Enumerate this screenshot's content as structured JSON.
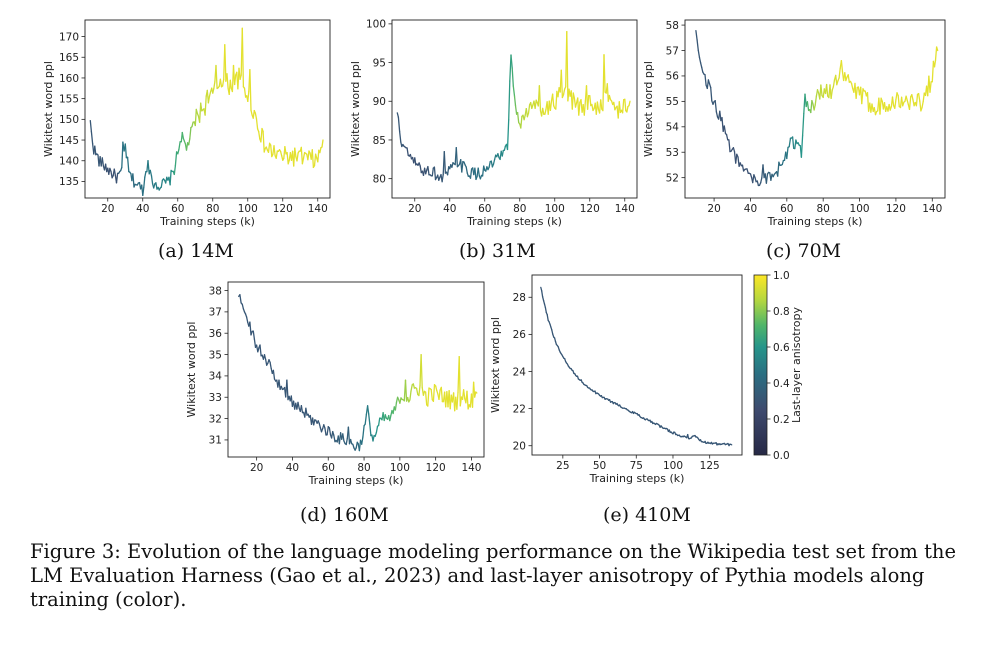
{
  "chart_data": [
    {
      "type": "line",
      "id": "a",
      "xlabel": "Training steps (k)",
      "ylabel": "Wikitext word ppl",
      "xlim": [
        7,
        147
      ],
      "ylim": [
        131,
        174
      ],
      "xticks": [
        20,
        40,
        60,
        80,
        100,
        120,
        140
      ],
      "yticks": [
        135,
        140,
        145,
        150,
        155,
        160,
        165,
        170
      ],
      "caption": "(a) 14M",
      "keypoints": [
        {
          "x": 10,
          "y": 149,
          "c": 0.35
        },
        {
          "x": 12,
          "y": 143,
          "c": 0.35
        },
        {
          "x": 15,
          "y": 140,
          "c": 0.35
        },
        {
          "x": 20,
          "y": 138,
          "c": 0.33
        },
        {
          "x": 25,
          "y": 136,
          "c": 0.33
        },
        {
          "x": 28,
          "y": 137,
          "c": 0.45
        },
        {
          "x": 30,
          "y": 144,
          "c": 0.48
        },
        {
          "x": 32,
          "y": 137,
          "c": 0.45
        },
        {
          "x": 35,
          "y": 135,
          "c": 0.42
        },
        {
          "x": 40,
          "y": 133,
          "c": 0.45
        },
        {
          "x": 43,
          "y": 140,
          "c": 0.5
        },
        {
          "x": 45,
          "y": 135,
          "c": 0.48
        },
        {
          "x": 50,
          "y": 134,
          "c": 0.52
        },
        {
          "x": 55,
          "y": 135,
          "c": 0.55
        },
        {
          "x": 58,
          "y": 138,
          "c": 0.65
        },
        {
          "x": 62,
          "y": 146,
          "c": 0.7
        },
        {
          "x": 65,
          "y": 143,
          "c": 0.75
        },
        {
          "x": 70,
          "y": 150,
          "c": 0.85
        },
        {
          "x": 75,
          "y": 153,
          "c": 0.9
        },
        {
          "x": 80,
          "y": 156,
          "c": 0.92
        },
        {
          "x": 85,
          "y": 160,
          "c": 0.95
        },
        {
          "x": 90,
          "y": 158,
          "c": 0.95
        },
        {
          "x": 95,
          "y": 160,
          "c": 0.95
        },
        {
          "x": 100,
          "y": 156,
          "c": 0.95
        },
        {
          "x": 105,
          "y": 150,
          "c": 0.95
        },
        {
          "x": 110,
          "y": 143,
          "c": 0.95
        },
        {
          "x": 120,
          "y": 141,
          "c": 0.95
        },
        {
          "x": 130,
          "y": 141,
          "c": 0.95
        },
        {
          "x": 140,
          "y": 140,
          "c": 0.95
        },
        {
          "x": 143,
          "y": 145,
          "c": 0.95
        }
      ],
      "spikes": [
        {
          "x": 29,
          "y": 144.5
        },
        {
          "x": 43,
          "y": 140
        },
        {
          "x": 87,
          "y": 168
        },
        {
          "x": 92,
          "y": 163
        },
        {
          "x": 97,
          "y": 172
        },
        {
          "x": 82,
          "y": 163
        },
        {
          "x": 77,
          "y": 157
        },
        {
          "x": 101,
          "y": 162
        }
      ]
    },
    {
      "type": "line",
      "id": "b",
      "xlabel": "Training steps (k)",
      "ylabel": "Wikitext word ppl",
      "xlim": [
        7,
        147
      ],
      "ylim": [
        77.5,
        100.5
      ],
      "xticks": [
        20,
        40,
        60,
        80,
        100,
        120,
        140
      ],
      "yticks": [
        80,
        85,
        90,
        95,
        100
      ],
      "caption": "(b) 31M",
      "keypoints": [
        {
          "x": 10,
          "y": 88.5,
          "c": 0.35
        },
        {
          "x": 12,
          "y": 85,
          "c": 0.35
        },
        {
          "x": 15,
          "y": 83.5,
          "c": 0.33
        },
        {
          "x": 20,
          "y": 82,
          "c": 0.33
        },
        {
          "x": 25,
          "y": 81,
          "c": 0.33
        },
        {
          "x": 30,
          "y": 81,
          "c": 0.35
        },
        {
          "x": 35,
          "y": 80,
          "c": 0.35
        },
        {
          "x": 40,
          "y": 81,
          "c": 0.38
        },
        {
          "x": 45,
          "y": 82,
          "c": 0.4
        },
        {
          "x": 50,
          "y": 81,
          "c": 0.42
        },
        {
          "x": 55,
          "y": 80.5,
          "c": 0.45
        },
        {
          "x": 60,
          "y": 81,
          "c": 0.45
        },
        {
          "x": 65,
          "y": 82,
          "c": 0.5
        },
        {
          "x": 70,
          "y": 83,
          "c": 0.55
        },
        {
          "x": 73,
          "y": 84,
          "c": 0.6
        },
        {
          "x": 75,
          "y": 96,
          "c": 0.65
        },
        {
          "x": 77,
          "y": 90,
          "c": 0.75
        },
        {
          "x": 80,
          "y": 87,
          "c": 0.85
        },
        {
          "x": 85,
          "y": 89,
          "c": 0.9
        },
        {
          "x": 90,
          "y": 89.5,
          "c": 0.92
        },
        {
          "x": 95,
          "y": 89,
          "c": 0.95
        },
        {
          "x": 100,
          "y": 90,
          "c": 0.95
        },
        {
          "x": 105,
          "y": 91,
          "c": 0.95
        },
        {
          "x": 110,
          "y": 90,
          "c": 0.95
        },
        {
          "x": 115,
          "y": 89,
          "c": 0.95
        },
        {
          "x": 120,
          "y": 90,
          "c": 0.95
        },
        {
          "x": 125,
          "y": 89,
          "c": 0.95
        },
        {
          "x": 130,
          "y": 91,
          "c": 0.95
        },
        {
          "x": 135,
          "y": 89,
          "c": 0.95
        },
        {
          "x": 140,
          "y": 89,
          "c": 0.95
        },
        {
          "x": 143,
          "y": 90,
          "c": 0.95
        }
      ],
      "spikes": [
        {
          "x": 37,
          "y": 83.5
        },
        {
          "x": 44,
          "y": 84
        },
        {
          "x": 107,
          "y": 99
        },
        {
          "x": 104,
          "y": 94
        },
        {
          "x": 128,
          "y": 96
        },
        {
          "x": 91,
          "y": 92
        },
        {
          "x": 118,
          "y": 92
        }
      ]
    },
    {
      "type": "line",
      "id": "c",
      "xlabel": "Training steps (k)",
      "ylabel": "Wikitext word ppl",
      "xlim": [
        4,
        147
      ],
      "ylim": [
        51.2,
        58.2
      ],
      "xticks": [
        20,
        40,
        60,
        80,
        100,
        120,
        140
      ],
      "yticks": [
        52,
        53,
        54,
        55,
        56,
        57,
        58
      ],
      "caption": "(c) 70M",
      "keypoints": [
        {
          "x": 10,
          "y": 57.9,
          "c": 0.35
        },
        {
          "x": 12,
          "y": 56.8,
          "c": 0.35
        },
        {
          "x": 15,
          "y": 56,
          "c": 0.35
        },
        {
          "x": 20,
          "y": 55,
          "c": 0.35
        },
        {
          "x": 25,
          "y": 54,
          "c": 0.33
        },
        {
          "x": 30,
          "y": 53,
          "c": 0.33
        },
        {
          "x": 35,
          "y": 52.5,
          "c": 0.33
        },
        {
          "x": 40,
          "y": 52,
          "c": 0.33
        },
        {
          "x": 45,
          "y": 51.8,
          "c": 0.35
        },
        {
          "x": 50,
          "y": 52,
          "c": 0.38
        },
        {
          "x": 55,
          "y": 52.3,
          "c": 0.42
        },
        {
          "x": 60,
          "y": 53,
          "c": 0.48
        },
        {
          "x": 62,
          "y": 53.5,
          "c": 0.52
        },
        {
          "x": 65,
          "y": 53.3,
          "c": 0.55
        },
        {
          "x": 68,
          "y": 53,
          "c": 0.6
        },
        {
          "x": 70,
          "y": 55.3,
          "c": 0.65
        },
        {
          "x": 72,
          "y": 54.5,
          "c": 0.75
        },
        {
          "x": 75,
          "y": 55,
          "c": 0.85
        },
        {
          "x": 80,
          "y": 55.5,
          "c": 0.9
        },
        {
          "x": 85,
          "y": 55.5,
          "c": 0.92
        },
        {
          "x": 90,
          "y": 56,
          "c": 0.95
        },
        {
          "x": 95,
          "y": 55.7,
          "c": 0.95
        },
        {
          "x": 100,
          "y": 55.2,
          "c": 0.95
        },
        {
          "x": 105,
          "y": 55,
          "c": 0.95
        },
        {
          "x": 110,
          "y": 54.8,
          "c": 0.95
        },
        {
          "x": 115,
          "y": 55,
          "c": 0.95
        },
        {
          "x": 120,
          "y": 55,
          "c": 0.95
        },
        {
          "x": 125,
          "y": 55,
          "c": 0.95
        },
        {
          "x": 130,
          "y": 55,
          "c": 0.95
        },
        {
          "x": 135,
          "y": 55,
          "c": 0.95
        },
        {
          "x": 140,
          "y": 56,
          "c": 0.95
        },
        {
          "x": 143,
          "y": 57,
          "c": 0.95
        }
      ],
      "spikes": [
        {
          "x": 47,
          "y": 52.5
        },
        {
          "x": 63,
          "y": 53.6
        },
        {
          "x": 90,
          "y": 56.6
        },
        {
          "x": 137,
          "y": 55.6
        }
      ]
    },
    {
      "type": "line",
      "id": "d",
      "xlabel": "Training steps (k)",
      "ylabel": "Wikitext word ppl",
      "xlim": [
        4,
        147
      ],
      "ylim": [
        30.2,
        38.4
      ],
      "xticks": [
        20,
        40,
        60,
        80,
        100,
        120,
        140
      ],
      "yticks": [
        31,
        32,
        33,
        34,
        35,
        36,
        37,
        38
      ],
      "caption": "(d) 160M",
      "keypoints": [
        {
          "x": 10,
          "y": 38,
          "c": 0.35
        },
        {
          "x": 12,
          "y": 37.2,
          "c": 0.35
        },
        {
          "x": 15,
          "y": 36.5,
          "c": 0.35
        },
        {
          "x": 20,
          "y": 35.5,
          "c": 0.35
        },
        {
          "x": 25,
          "y": 34.8,
          "c": 0.35
        },
        {
          "x": 30,
          "y": 34,
          "c": 0.35
        },
        {
          "x": 35,
          "y": 33.3,
          "c": 0.35
        },
        {
          "x": 40,
          "y": 32.8,
          "c": 0.35
        },
        {
          "x": 45,
          "y": 32.4,
          "c": 0.35
        },
        {
          "x": 50,
          "y": 32,
          "c": 0.35
        },
        {
          "x": 55,
          "y": 31.7,
          "c": 0.35
        },
        {
          "x": 60,
          "y": 31.4,
          "c": 0.35
        },
        {
          "x": 65,
          "y": 31.1,
          "c": 0.38
        },
        {
          "x": 70,
          "y": 31,
          "c": 0.38
        },
        {
          "x": 75,
          "y": 30.7,
          "c": 0.4
        },
        {
          "x": 78,
          "y": 30.8,
          "c": 0.45
        },
        {
          "x": 82,
          "y": 32.2,
          "c": 0.5
        },
        {
          "x": 85,
          "y": 31,
          "c": 0.55
        },
        {
          "x": 90,
          "y": 32,
          "c": 0.65
        },
        {
          "x": 95,
          "y": 32,
          "c": 0.7
        },
        {
          "x": 100,
          "y": 33,
          "c": 0.8
        },
        {
          "x": 105,
          "y": 33,
          "c": 0.85
        },
        {
          "x": 110,
          "y": 33.5,
          "c": 0.9
        },
        {
          "x": 115,
          "y": 33,
          "c": 0.95
        },
        {
          "x": 120,
          "y": 33.2,
          "c": 0.95
        },
        {
          "x": 125,
          "y": 33,
          "c": 0.95
        },
        {
          "x": 130,
          "y": 32.8,
          "c": 0.95
        },
        {
          "x": 135,
          "y": 33,
          "c": 0.95
        },
        {
          "x": 140,
          "y": 32.8,
          "c": 0.95
        },
        {
          "x": 143,
          "y": 33.2,
          "c": 0.95
        }
      ],
      "spikes": [
        {
          "x": 37,
          "y": 33.8
        },
        {
          "x": 71,
          "y": 31.6
        },
        {
          "x": 82,
          "y": 32.6
        },
        {
          "x": 112,
          "y": 35
        },
        {
          "x": 133,
          "y": 34.9
        },
        {
          "x": 103,
          "y": 33.8
        },
        {
          "x": 141,
          "y": 33.7
        }
      ]
    },
    {
      "type": "line",
      "id": "e",
      "xlabel": "Training steps (k)",
      "ylabel": "Wikitext word ppl",
      "xlim": [
        4,
        147
      ],
      "ylim": [
        19.5,
        29.2
      ],
      "xticks": [
        25,
        50,
        75,
        100,
        125
      ],
      "yticks": [
        20,
        22,
        24,
        26,
        28
      ],
      "caption": "(e) 410M",
      "keypoints": [
        {
          "x": 10,
          "y": 28.5,
          "c": 0.35
        },
        {
          "x": 15,
          "y": 26.8,
          "c": 0.35
        },
        {
          "x": 20,
          "y": 25.6,
          "c": 0.35
        },
        {
          "x": 25,
          "y": 24.8,
          "c": 0.35
        },
        {
          "x": 30,
          "y": 24.2,
          "c": 0.35
        },
        {
          "x": 35,
          "y": 23.7,
          "c": 0.35
        },
        {
          "x": 40,
          "y": 23.3,
          "c": 0.35
        },
        {
          "x": 45,
          "y": 23,
          "c": 0.35
        },
        {
          "x": 50,
          "y": 22.7,
          "c": 0.35
        },
        {
          "x": 60,
          "y": 22.3,
          "c": 0.35
        },
        {
          "x": 70,
          "y": 21.9,
          "c": 0.35
        },
        {
          "x": 80,
          "y": 21.5,
          "c": 0.35
        },
        {
          "x": 90,
          "y": 21.1,
          "c": 0.35
        },
        {
          "x": 100,
          "y": 20.7,
          "c": 0.35
        },
        {
          "x": 110,
          "y": 20.4,
          "c": 0.35
        },
        {
          "x": 115,
          "y": 20.5,
          "c": 0.35
        },
        {
          "x": 120,
          "y": 20.2,
          "c": 0.35
        },
        {
          "x": 130,
          "y": 20.1,
          "c": 0.35
        },
        {
          "x": 140,
          "y": 20.05,
          "c": 0.35
        }
      ],
      "spikes": [
        {
          "x": 110,
          "y": 20.6
        }
      ]
    }
  ],
  "colorbar": {
    "label": "Last-layer anisotropy",
    "ticks": [
      "0.0",
      "0.2",
      "0.4",
      "0.6",
      "0.8",
      "1.0"
    ],
    "tick_values": [
      0,
      0.2,
      0.4,
      0.6,
      0.8,
      1.0
    ],
    "colors": [
      "#440154",
      "#3b528b",
      "#21918c",
      "#5ec962",
      "#fde725"
    ]
  },
  "figure_caption": "Figure 3: Evolution of the language modeling performance on the Wikipedia test set from the LM Evaluation Harness (Gao et al., 2023) and last-layer anisotropy of Pythia models along training (color)."
}
